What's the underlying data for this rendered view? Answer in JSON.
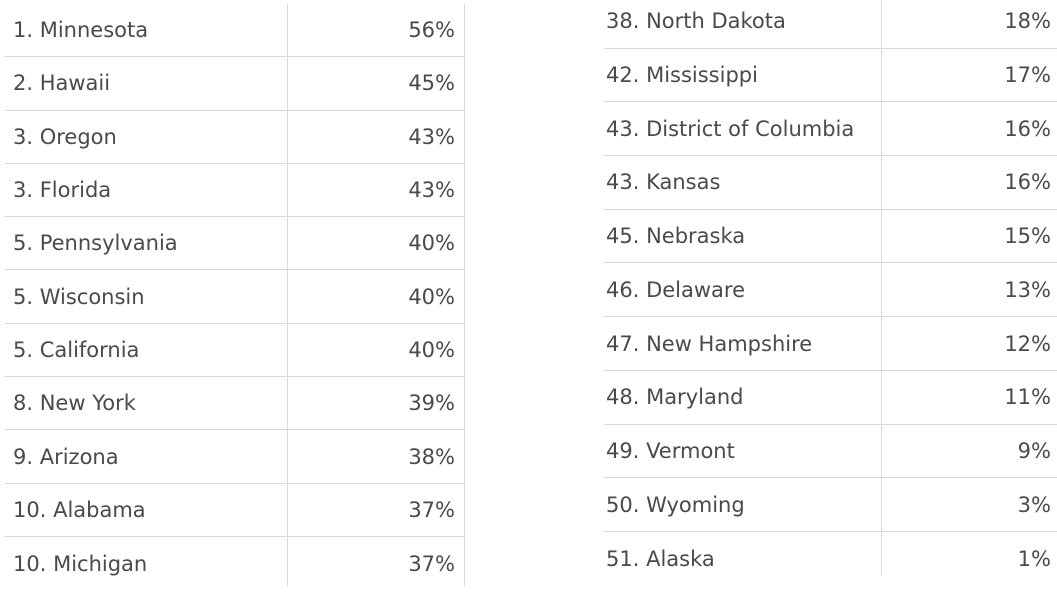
{
  "tables": [
    {
      "rows": [
        [
          "1. Minnesota",
          "56%"
        ],
        [
          "2. Hawaii",
          "45%"
        ],
        [
          "3. Oregon",
          "43%"
        ],
        [
          "3. Florida",
          "43%"
        ],
        [
          "5. Pennsylvania",
          "40%"
        ],
        [
          "5. Wisconsin",
          "40%"
        ],
        [
          "5. California",
          "40%"
        ],
        [
          "8. New York",
          "39%"
        ],
        [
          "9. Arizona",
          "38%"
        ],
        [
          "10. Alabama",
          "37%"
        ],
        [
          "10. Michigan",
          "37%"
        ]
      ]
    },
    {
      "rows": [
        [
          "38. North Dakota",
          "18%"
        ],
        [
          "42. Mississippi",
          "17%"
        ],
        [
          "43. District of Columbia",
          "16%"
        ],
        [
          "43. Kansas",
          "16%"
        ],
        [
          "45. Nebraska",
          "15%"
        ],
        [
          "46. Delaware",
          "13%"
        ],
        [
          "47. New Hampshire",
          "12%"
        ],
        [
          "48. Maryland",
          "11%"
        ],
        [
          "49. Vermont",
          "9%"
        ],
        [
          "50. Wyoming",
          "3%"
        ],
        [
          "51. Alaska",
          "1%"
        ]
      ]
    }
  ]
}
